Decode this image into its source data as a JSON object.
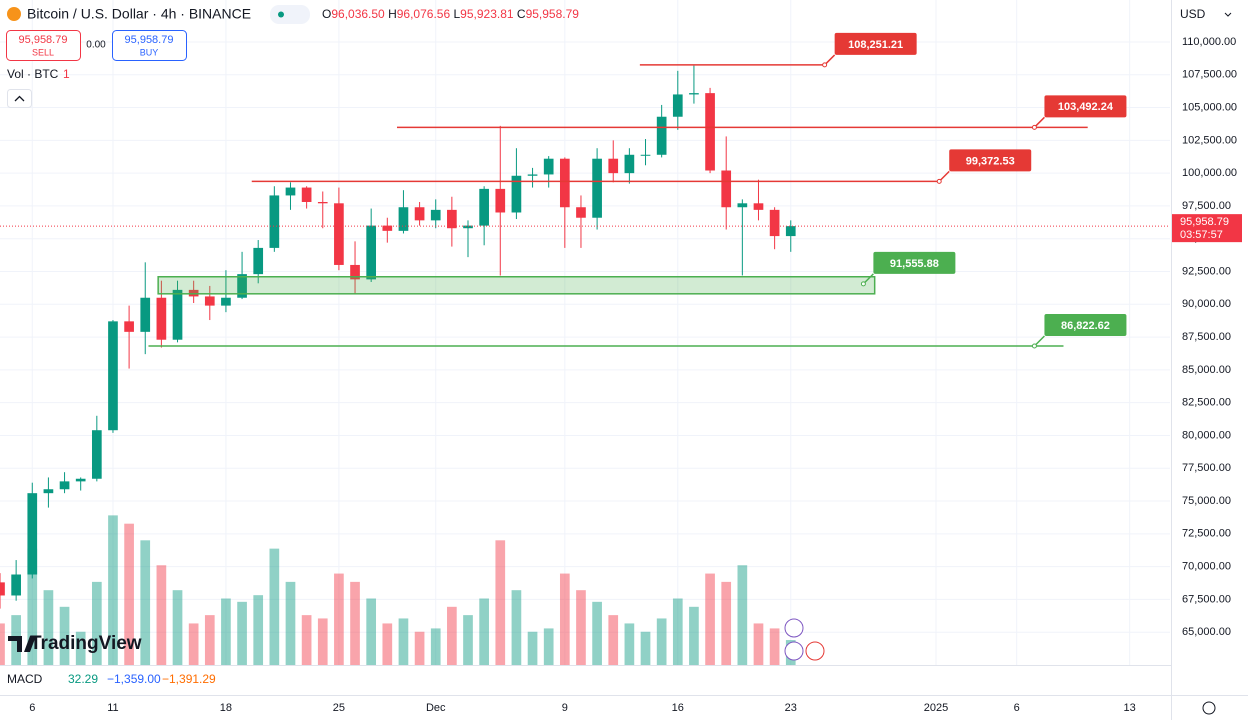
{
  "ui": {
    "symbol": "Bitcoin / U.S. Dollar · 4h · BINANCE",
    "ohlc": [
      {
        "key": "O",
        "value": "96,036.50"
      },
      {
        "key": "H",
        "value": "96,076.56"
      },
      {
        "key": "L",
        "value": "95,923.81"
      },
      {
        "key": "C",
        "value": "95,958.79"
      }
    ],
    "sell": {
      "price": "95,958.79",
      "label": "SELL"
    },
    "spread": "0.00",
    "buy": {
      "price": "95,958.79",
      "label": "BUY"
    },
    "volume_legend": {
      "label": "Vol · BTC",
      "value": "1"
    },
    "currency": "USD",
    "logo": "TradingView",
    "macd": {
      "label": "MACD",
      "values": [
        "32.29",
        "−1,359.00",
        "−1,391.29"
      ]
    },
    "last_price": {
      "value": 95958.79,
      "label": "95,958.79",
      "countdown": "03:57:57"
    }
  },
  "chart_data": {
    "type": "candlestick",
    "up_color": "#089981",
    "down_color": "#f23645",
    "x": [
      3,
      4,
      5,
      6,
      7,
      8,
      9,
      10,
      11,
      12,
      13,
      14,
      15,
      16,
      17,
      18,
      19,
      20,
      21,
      22,
      23,
      24,
      25,
      26,
      27,
      28,
      29,
      30,
      31,
      32,
      33,
      34,
      35,
      36,
      37,
      38,
      39,
      40,
      41,
      42,
      43,
      44,
      45,
      46,
      47,
      48,
      49,
      50,
      51,
      52
    ],
    "open": [
      68800,
      67800,
      69400,
      75600,
      75900,
      76500,
      76700,
      80400,
      88700,
      87900,
      90500,
      87300,
      91100,
      90600,
      89900,
      90500,
      92300,
      94300,
      98300,
      98900,
      97800,
      97700,
      93000,
      91900,
      96000,
      95600,
      97400,
      96400,
      97200,
      95800,
      96000,
      98800,
      97000,
      99800,
      99900,
      101100,
      97400,
      96600,
      101100,
      100000,
      101400,
      101400,
      104300,
      106000,
      106100,
      100200,
      97400,
      97700,
      97200,
      95200
    ],
    "high": [
      69500,
      70500,
      76400,
      76800,
      77200,
      76800,
      81500,
      88800,
      89900,
      93200,
      91800,
      91800,
      91800,
      91400,
      92600,
      94000,
      94900,
      99000,
      99300,
      99000,
      98600,
      98900,
      94800,
      97300,
      96600,
      98700,
      97800,
      98000,
      98200,
      96400,
      99000,
      103600,
      101900,
      100400,
      101300,
      101200,
      98300,
      101900,
      102500,
      101900,
      102600,
      105200,
      107800,
      108200,
      106500,
      102800,
      98000,
      99500,
      97400,
      96400
    ],
    "low": [
      66800,
      67400,
      69100,
      74500,
      75600,
      75800,
      76500,
      80200,
      85100,
      86200,
      86700,
      87100,
      90100,
      88800,
      89400,
      90400,
      91600,
      94000,
      97200,
      97300,
      95800,
      92600,
      90800,
      91700,
      94700,
      95400,
      96000,
      95800,
      94400,
      93600,
      94500,
      92200,
      96500,
      98900,
      98900,
      94300,
      94300,
      95700,
      99300,
      99200,
      100600,
      101200,
      103300,
      105300,
      100000,
      95700,
      92200,
      96400,
      94200,
      94000
    ],
    "close": [
      67800,
      69400,
      75600,
      75900,
      76500,
      76700,
      80400,
      88700,
      87900,
      90500,
      87300,
      91100,
      90600,
      89900,
      90500,
      92300,
      94300,
      98300,
      98900,
      97800,
      97700,
      93000,
      91900,
      96000,
      95600,
      97400,
      96400,
      97200,
      95800,
      96000,
      98800,
      97000,
      99800,
      99900,
      101100,
      97400,
      96600,
      101100,
      100000,
      101400,
      101400,
      104300,
      106000,
      106100,
      100200,
      97400,
      97700,
      97200,
      95200,
      95958.79
    ],
    "volume": [
      25000,
      30000,
      70000,
      45000,
      35000,
      20000,
      50000,
      90000,
      85000,
      75000,
      60000,
      45000,
      25000,
      30000,
      40000,
      38000,
      42000,
      70000,
      50000,
      30000,
      28000,
      55000,
      50000,
      40000,
      25000,
      28000,
      20000,
      22000,
      35000,
      30000,
      40000,
      75000,
      45000,
      20000,
      22000,
      55000,
      45000,
      38000,
      30000,
      25000,
      20000,
      28000,
      40000,
      35000,
      55000,
      50000,
      60000,
      25000,
      22000,
      15000
    ],
    "volume_lim": [
      0,
      400000
    ],
    "xlim": [
      3,
      75.5
    ],
    "xticks": [
      {
        "value": 5,
        "label": "6"
      },
      {
        "value": 10,
        "label": "11"
      },
      {
        "value": 17,
        "label": "18"
      },
      {
        "value": 24,
        "label": "25"
      },
      {
        "value": 30,
        "label": "Dec"
      },
      {
        "value": 38,
        "label": "9"
      },
      {
        "value": 45,
        "label": "16"
      },
      {
        "value": 52,
        "label": "23"
      },
      {
        "value": 61,
        "label": "2025"
      },
      {
        "value": 66,
        "label": "6"
      },
      {
        "value": 73,
        "label": "13"
      }
    ],
    "ylim": [
      62500,
      113200
    ],
    "yticks": [
      {
        "value": 65000,
        "label": "65,000.00"
      },
      {
        "value": 67500,
        "label": "67,500.00"
      },
      {
        "value": 70000,
        "label": "70,000.00"
      },
      {
        "value": 72500,
        "label": "72,500.00"
      },
      {
        "value": 75000,
        "label": "75,000.00"
      },
      {
        "value": 77500,
        "label": "77,500.00"
      },
      {
        "value": 80000,
        "label": "80,000.00"
      },
      {
        "value": 82500,
        "label": "82,500.00"
      },
      {
        "value": 85000,
        "label": "85,000.00"
      },
      {
        "value": 87500,
        "label": "87,500.00"
      },
      {
        "value": 90000,
        "label": "90,000.00"
      },
      {
        "value": 92500,
        "label": "92,500.00"
      },
      {
        "value": 95000,
        "label": "95,000.00"
      },
      {
        "value": 97500,
        "label": "97,500.00"
      },
      {
        "value": 100000,
        "label": "100,000.00"
      },
      {
        "value": 102500,
        "label": "102,500.00"
      },
      {
        "value": 105000,
        "label": "105,000.00"
      },
      {
        "value": 107500,
        "label": "107,500.00"
      },
      {
        "value": 110000,
        "label": "110,000.00"
      }
    ],
    "grid": true,
    "annotations": [
      {
        "value": 108251.21,
        "label": "108,251.21",
        "color": "#e53935",
        "x_range": [
          42.65,
          54.1
        ]
      },
      {
        "value": 103492.24,
        "label": "103,492.24",
        "color": "#e53935",
        "x_range": [
          27.6,
          70.4
        ],
        "anchor": 67.1
      },
      {
        "value": 99372.53,
        "label": "99,372.53",
        "color": "#e53935",
        "x_range": [
          18.6,
          61.2
        ]
      },
      {
        "value": 91555.88,
        "label": "91,555.88",
        "color": "#4caf50",
        "x_range": [
          12.8,
          57.2
        ],
        "zone": [
          90800,
          92100
        ],
        "anchor": 56.5
      },
      {
        "value": 86822.62,
        "label": "86,822.62",
        "color": "#4caf50",
        "x_range": [
          12.2,
          68.9
        ],
        "anchor": 67.1
      }
    ]
  }
}
